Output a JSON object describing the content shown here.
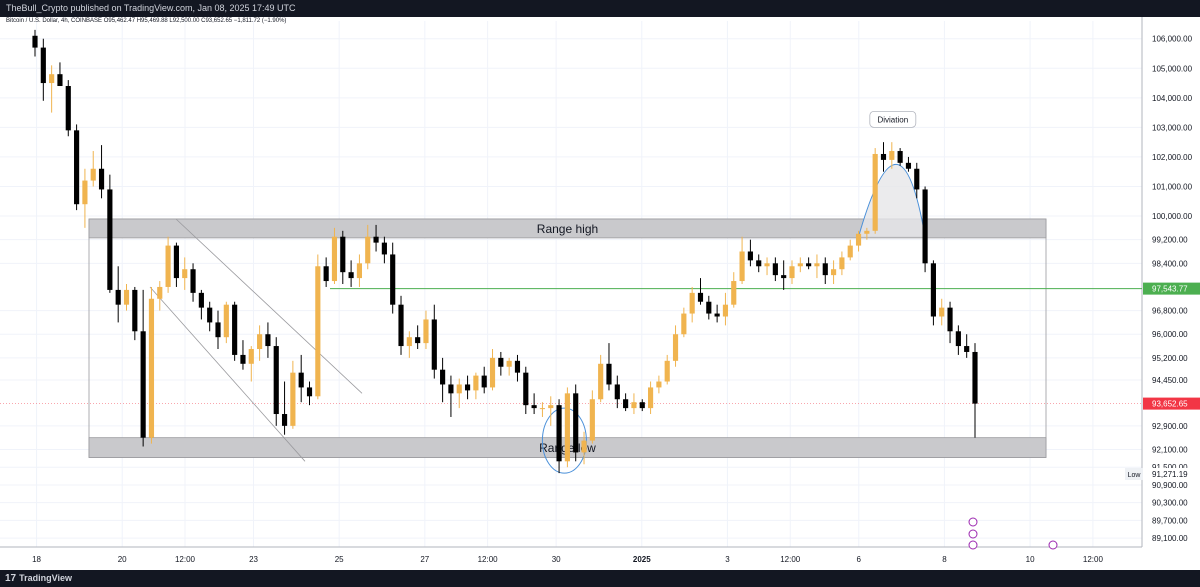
{
  "header": {
    "publisher_text": "TheBull_Crypto published on TradingView.com, Jan 08, 2025 17:49 UTC"
  },
  "footer": {
    "brand": "TradingView",
    "brand_glyph": "17"
  },
  "legend": {
    "symbol_line": "Bitcoin / U.S. Dollar, 4h, COINBASE  O95,462.47  H95,469.88  L92,500.00  C93,652.65  −1,811.72 (−1.90%)"
  },
  "colors": {
    "up": "#f0b44f",
    "down": "#000000",
    "range_box": "#c9c9cc",
    "range_line": "#9a9a9e",
    "level_line": "#4caf50",
    "last_price_bg": "#f23645",
    "ellipse": "#4a90d9",
    "grid": "#f0f3fa"
  },
  "chart_data": {
    "type": "candlestick",
    "symbol": "Bitcoin / U.S. Dollar",
    "timeframe": "4h",
    "exchange": "COINBASE",
    "ylim": [
      88800,
      106600
    ],
    "y_ticks": [
      "106,000.00",
      "105,000.00",
      "104,000.00",
      "103,000.00",
      "102,000.00",
      "101,000.00",
      "100,000.00",
      "99,200.00",
      "98,400.00",
      "96,800.00",
      "96,000.00",
      "95,200.00",
      "94,450.00",
      "92,900.00",
      "92,100.00",
      "91,500.00",
      "90,900.00",
      "90,300.00",
      "89,700.00",
      "89,100.00"
    ],
    "x_ticks": [
      "18",
      "20",
      "12:00",
      "23",
      "25",
      "27",
      "12:00",
      "30",
      "2025",
      "3",
      "12:00",
      "6",
      "8",
      "10",
      "12:00"
    ],
    "x_tick_pos": [
      0.032,
      0.107,
      0.162,
      0.222,
      0.297,
      0.372,
      0.427,
      0.487,
      0.562,
      0.637,
      0.692,
      0.752,
      0.827,
      0.902,
      0.957
    ],
    "price_labels": [
      {
        "text": "97,543.77",
        "value": 97543.77,
        "style": "green"
      },
      {
        "text": "93,652.65",
        "value": 93652.65,
        "style": "red"
      },
      {
        "text": "91,271.19",
        "value": 91271.19,
        "style": "plain"
      }
    ],
    "low_label": "Low",
    "ranges": [
      {
        "label": "Range high",
        "low": 99260,
        "high": 99900
      },
      {
        "label": "Range low",
        "low": 91830,
        "high": 92500
      }
    ],
    "level_line": 97543.77,
    "annotation": "Diviation",
    "candles": [
      [
        106100,
        106300,
        105400,
        105700
      ],
      [
        105700,
        106000,
        103900,
        104500
      ],
      [
        104500,
        105100,
        103500,
        104800
      ],
      [
        104800,
        105200,
        104400,
        104400
      ],
      [
        104400,
        104600,
        102700,
        102900
      ],
      [
        102900,
        103100,
        100200,
        100400
      ],
      [
        100400,
        101600,
        99600,
        101200
      ],
      [
        101200,
        102200,
        101000,
        101600
      ],
      [
        101600,
        102400,
        100600,
        100900
      ],
      [
        100900,
        101400,
        97400,
        97500
      ],
      [
        97500,
        98300,
        96400,
        97000
      ],
      [
        97000,
        97700,
        96800,
        97500
      ],
      [
        97500,
        97600,
        95800,
        96100
      ],
      [
        96100,
        97500,
        92200,
        92500
      ],
      [
        92500,
        97600,
        92300,
        97200
      ],
      [
        97200,
        97800,
        96800,
        97600
      ],
      [
        97600,
        99300,
        97400,
        99000
      ],
      [
        99000,
        99100,
        97600,
        97900
      ],
      [
        97900,
        98600,
        97500,
        98200
      ],
      [
        98200,
        98400,
        97100,
        97400
      ],
      [
        97400,
        97500,
        96500,
        96900
      ],
      [
        96900,
        97100,
        96100,
        96400
      ],
      [
        96400,
        96800,
        95500,
        95900
      ],
      [
        95900,
        97100,
        95700,
        97000
      ],
      [
        97000,
        97100,
        95100,
        95300
      ],
      [
        95300,
        95800,
        94800,
        95000
      ],
      [
        95000,
        95600,
        94400,
        95500
      ],
      [
        95500,
        96300,
        95100,
        96000
      ],
      [
        96000,
        96400,
        95200,
        95600
      ],
      [
        95600,
        95900,
        92900,
        93300
      ],
      [
        93300,
        94400,
        92600,
        92900
      ],
      [
        92900,
        95100,
        92800,
        94700
      ],
      [
        94700,
        95300,
        93700,
        94200
      ],
      [
        94200,
        94400,
        93600,
        93900
      ],
      [
        93900,
        98700,
        93800,
        98300
      ],
      [
        98300,
        98600,
        97600,
        97800
      ],
      [
        97800,
        99600,
        97700,
        99300
      ],
      [
        99300,
        99500,
        97700,
        98100
      ],
      [
        98100,
        98500,
        97600,
        97900
      ],
      [
        97900,
        98700,
        97600,
        98400
      ],
      [
        98400,
        99700,
        98200,
        99300
      ],
      [
        99300,
        99700,
        98800,
        99100
      ],
      [
        99100,
        99300,
        98400,
        98700
      ],
      [
        98700,
        99100,
        96700,
        97000
      ],
      [
        97000,
        97300,
        95300,
        95600
      ],
      [
        95600,
        96100,
        95200,
        95900
      ],
      [
        95900,
        96300,
        95500,
        95700
      ],
      [
        95700,
        96800,
        95500,
        96500
      ],
      [
        96500,
        97000,
        94500,
        94800
      ],
      [
        94800,
        95200,
        93700,
        94300
      ],
      [
        94300,
        94600,
        93200,
        94000
      ],
      [
        94000,
        94500,
        93500,
        94300
      ],
      [
        94300,
        94600,
        93800,
        94100
      ],
      [
        94100,
        94700,
        93800,
        94600
      ],
      [
        94600,
        94900,
        94000,
        94200
      ],
      [
        94200,
        95500,
        94100,
        95200
      ],
      [
        95200,
        95400,
        94600,
        94900
      ],
      [
        94900,
        95200,
        94600,
        95100
      ],
      [
        95100,
        95300,
        94400,
        94700
      ],
      [
        94700,
        94900,
        93300,
        93600
      ],
      [
        93600,
        94000,
        93300,
        93500
      ],
      [
        93500,
        93700,
        93200,
        93500
      ],
      [
        93500,
        93900,
        92900,
        93600
      ],
      [
        93600,
        93800,
        91300,
        91700
      ],
      [
        91700,
        94200,
        91500,
        94000
      ],
      [
        94000,
        94300,
        91700,
        92000
      ],
      [
        92000,
        92700,
        91600,
        92400
      ],
      [
        92400,
        94100,
        92300,
        93800
      ],
      [
        93800,
        95300,
        93700,
        95000
      ],
      [
        95000,
        95700,
        94100,
        94300
      ],
      [
        94300,
        94600,
        93500,
        93800
      ],
      [
        93800,
        94000,
        93400,
        93500
      ],
      [
        93500,
        94000,
        93300,
        93700
      ],
      [
        93700,
        93800,
        93400,
        93500
      ],
      [
        93500,
        94400,
        93300,
        94200
      ],
      [
        94200,
        94600,
        94000,
        94400
      ],
      [
        94400,
        95300,
        94300,
        95100
      ],
      [
        95100,
        96300,
        94900,
        96000
      ],
      [
        96000,
        96900,
        95900,
        96700
      ],
      [
        96700,
        97600,
        96400,
        97400
      ],
      [
        97400,
        97900,
        97000,
        97100
      ],
      [
        97100,
        97300,
        96500,
        96700
      ],
      [
        96700,
        97000,
        96400,
        96600
      ],
      [
        96600,
        97400,
        96300,
        97000
      ],
      [
        97000,
        98100,
        96900,
        97800
      ],
      [
        97800,
        99300,
        97700,
        98800
      ],
      [
        98800,
        99200,
        98300,
        98500
      ],
      [
        98500,
        98700,
        98100,
        98300
      ],
      [
        98300,
        98600,
        98000,
        98400
      ],
      [
        98400,
        98600,
        97800,
        98000
      ],
      [
        98000,
        98500,
        97500,
        97900
      ],
      [
        97900,
        98500,
        97700,
        98300
      ],
      [
        98300,
        98600,
        98100,
        98400
      ],
      [
        98400,
        98600,
        98200,
        98300
      ],
      [
        98300,
        98700,
        97900,
        98400
      ],
      [
        98400,
        98600,
        97700,
        98000
      ],
      [
        98000,
        98500,
        97700,
        98200
      ],
      [
        98200,
        98800,
        98000,
        98600
      ],
      [
        98600,
        99200,
        98500,
        99000
      ],
      [
        99000,
        99500,
        98800,
        99400
      ],
      [
        99400,
        99600,
        99200,
        99500
      ],
      [
        99500,
        102300,
        99400,
        102100
      ],
      [
        102100,
        102500,
        101500,
        101900
      ],
      [
        101900,
        102500,
        101600,
        102200
      ],
      [
        102200,
        102300,
        101700,
        101800
      ],
      [
        101800,
        102000,
        101500,
        101600
      ],
      [
        101600,
        101800,
        100600,
        100900
      ],
      [
        100900,
        101000,
        98100,
        98400
      ],
      [
        98400,
        98500,
        96300,
        96600
      ],
      [
        96600,
        97200,
        96300,
        96900
      ],
      [
        96900,
        97100,
        95700,
        96100
      ],
      [
        96100,
        96300,
        95300,
        95600
      ],
      [
        95600,
        96000,
        95200,
        95400
      ],
      [
        95400,
        95700,
        92500,
        93652.65
      ]
    ],
    "grid": true,
    "y_scale": "linear"
  }
}
